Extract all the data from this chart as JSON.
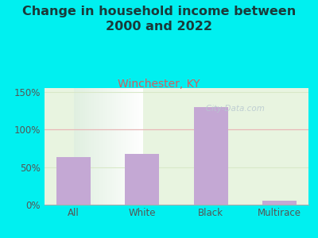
{
  "title": "Change in household income between\n2000 and 2022",
  "subtitle": "Winchester, KY",
  "categories": [
    "All",
    "White",
    "Black",
    "Multirace"
  ],
  "values": [
    63,
    67,
    130,
    5
  ],
  "bar_color": "#C4A8D4",
  "background_color": "#00F0F0",
  "plot_bg_left": "#D8EDCC",
  "plot_bg_right": "#F8FFF8",
  "title_fontsize": 11.5,
  "subtitle_fontsize": 10,
  "subtitle_color": "#D06060",
  "title_color": "#1A3A3A",
  "yticks": [
    0,
    50,
    100,
    150
  ],
  "ylim": [
    0,
    155
  ],
  "grid_color_50": "#D8E8C8",
  "grid_color_100": "#E8B8B8",
  "grid_color_150": "#D8E8C8",
  "watermark": "   City-Data.com",
  "watermark_color": "#B8C8D0"
}
